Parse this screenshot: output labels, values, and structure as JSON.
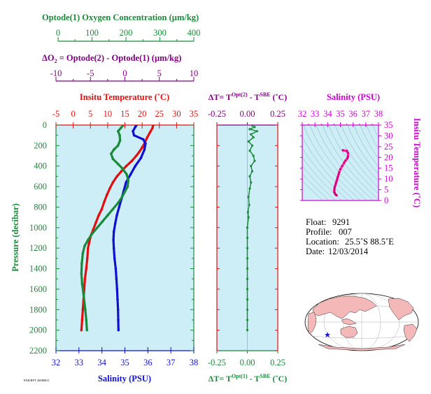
{
  "colors": {
    "green": "#1a8a3a",
    "red": "#e01010",
    "purple": "#800080",
    "magenta": "#d000d0",
    "blue": "#1010d0",
    "panel": "#cdeef7",
    "ts_line": "#ff33aa"
  },
  "headers": {
    "oxygen_title": "Optode(1) Oxygen Concentration (µm/kg)",
    "oxygen_ticks": [
      "0",
      "100",
      "200",
      "300",
      "400"
    ],
    "delta_o2_title_pre": "ΔO",
    "delta_o2_title_sub": "2",
    "delta_o2_title_post": " = Optode(2) - Optode(1)    (µm/kg)",
    "delta_o2_ticks": [
      "-10",
      "-5",
      "0",
      "5",
      "10"
    ],
    "temp_title": "Insitu Temperature (˚C)",
    "temp_ticks": [
      "-5",
      "0",
      "5",
      "10",
      "15",
      "20",
      "25",
      "30",
      "35"
    ],
    "dt_top_title_pre": "ΔT= T",
    "dt_top_sup1": "Opt(2)",
    "dt_top_mid": " - T",
    "dt_top_sup2": "SBE",
    "dt_top_post": " (˚C)",
    "dt_ticks": [
      "-0.25",
      "0.00",
      "0.25"
    ],
    "sal_top_title": "Salinity (PSU)",
    "sal_top_ticks": [
      "32",
      "33",
      "34",
      "35",
      "36",
      "37",
      "38"
    ]
  },
  "main_axes": {
    "ylabel": "Pressure (decibar)",
    "yticks": [
      "0",
      "200",
      "400",
      "600",
      "800",
      "1000",
      "1200",
      "1400",
      "1600",
      "1800",
      "2000",
      "2200"
    ],
    "xlabel": "Salinity (PSU)",
    "xticks": [
      "32",
      "33",
      "34",
      "35",
      "36",
      "37",
      "38"
    ],
    "tiny_label": "PAR/RFT 20080811"
  },
  "dt_bottom": {
    "title_pre": "ΔT= T",
    "sup1": "Opt(1)",
    "mid": " - T",
    "sup2": "SBE",
    "post": " (˚C)",
    "ticks": [
      "-0.25",
      "0.00",
      "0.25"
    ]
  },
  "ts_axes": {
    "right_label": "Insitu Temperature (˚C)",
    "right_ticks": [
      "0",
      "5",
      "10",
      "15",
      "20",
      "25",
      "30",
      "35"
    ]
  },
  "info": {
    "float_label": "Float:",
    "float_value": "9291",
    "profile_label": "Profile:",
    "profile_value": "007",
    "location_label": "Location:",
    "location_value": "25.5˚S  88.5˚E",
    "date_label": "Date:",
    "date_value": "12/03/2014"
  },
  "chart_data": [
    {
      "type": "line",
      "name": "profile-plot",
      "ylim": [
        0,
        2200
      ],
      "y_reversed": true,
      "series": [
        {
          "name": "Insitu Temperature (˚C)",
          "axis": "temperature",
          "xlim": [
            -5,
            35
          ],
          "color": "#e01010",
          "points": [
            [
              23.2,
              2
            ],
            [
              23,
              30
            ],
            [
              22.3,
              70
            ],
            [
              21.5,
              120
            ],
            [
              20.8,
              170
            ],
            [
              20,
              220
            ],
            [
              19.2,
              260
            ],
            [
              18.3,
              300
            ],
            [
              17,
              350
            ],
            [
              15.4,
              400
            ],
            [
              14,
              450
            ],
            [
              12.7,
              500
            ],
            [
              11.5,
              560
            ],
            [
              10.6,
              620
            ],
            [
              9.8,
              680
            ],
            [
              9,
              750
            ],
            [
              8.3,
              820
            ],
            [
              7.4,
              880
            ],
            [
              6.6,
              950
            ],
            [
              5.8,
              1020
            ],
            [
              5.1,
              1080
            ],
            [
              4.6,
              1150
            ],
            [
              4.3,
              1200
            ],
            [
              4.1,
              1300
            ],
            [
              3.8,
              1400
            ],
            [
              3.4,
              1500
            ],
            [
              3.2,
              1600
            ],
            [
              3.0,
              1700
            ],
            [
              2.8,
              1800
            ],
            [
              2.6,
              1900
            ],
            [
              2.4,
              2000
            ]
          ]
        },
        {
          "name": "Salinity (PSU)",
          "axis": "salinity",
          "xlim": [
            32,
            38
          ],
          "color": "#1010d0",
          "points": [
            [
              35.5,
              2
            ],
            [
              35.45,
              20
            ],
            [
              35.35,
              60
            ],
            [
              35.4,
              100
            ],
            [
              35.8,
              140
            ],
            [
              35.9,
              180
            ],
            [
              35.85,
              240
            ],
            [
              35.7,
              320
            ],
            [
              35.45,
              400
            ],
            [
              35.25,
              480
            ],
            [
              35.05,
              560
            ],
            [
              34.95,
              640
            ],
            [
              34.85,
              720
            ],
            [
              34.75,
              800
            ],
            [
              34.65,
              880
            ],
            [
              34.58,
              960
            ],
            [
              34.52,
              1040
            ],
            [
              34.5,
              1120
            ],
            [
              34.52,
              1200
            ],
            [
              34.55,
              1300
            ],
            [
              34.6,
              1400
            ],
            [
              34.63,
              1500
            ],
            [
              34.66,
              1600
            ],
            [
              34.68,
              1700
            ],
            [
              34.7,
              1800
            ],
            [
              34.71,
              1900
            ],
            [
              34.72,
              2000
            ]
          ]
        },
        {
          "name": "Optode(1) Oxygen Concentration (µm/kg)",
          "axis": "oxygen",
          "xlim": [
            0,
            400
          ],
          "color": "#1a8a3a",
          "points": [
            [
              195,
              2
            ],
            [
              188,
              30
            ],
            [
              180,
              60
            ],
            [
              185,
              100
            ],
            [
              186,
              150
            ],
            [
              180,
              200
            ],
            [
              168,
              240
            ],
            [
              160,
              280
            ],
            [
              165,
              330
            ],
            [
              180,
              380
            ],
            [
              192,
              420
            ],
            [
              205,
              480
            ],
            [
              210,
              540
            ],
            [
              208,
              600
            ],
            [
              200,
              650
            ],
            [
              192,
              700
            ],
            [
              180,
              760
            ],
            [
              165,
              820
            ],
            [
              150,
              880
            ],
            [
              135,
              940
            ],
            [
              120,
              1000
            ],
            [
              105,
              1060
            ],
            [
              93,
              1120
            ],
            [
              83,
              1180
            ],
            [
              78,
              1250
            ],
            [
              75,
              1350
            ],
            [
              74,
              1450
            ],
            [
              76,
              1550
            ],
            [
              80,
              1650
            ],
            [
              85,
              1800
            ],
            [
              88,
              1900
            ],
            [
              90,
              2000
            ]
          ]
        }
      ]
    },
    {
      "type": "line",
      "name": "delta-t-plot",
      "xlim": [
        -0.25,
        0.25
      ],
      "ylim": [
        0,
        2200
      ],
      "y_reversed": true,
      "series": [
        {
          "name": "ΔT= T Opt(2) - T SBE",
          "color": "#1a8a3a",
          "points": [
            [
              0.04,
              5
            ],
            [
              0.06,
              20
            ],
            [
              0.02,
              40
            ],
            [
              0.08,
              60
            ],
            [
              0.03,
              90
            ],
            [
              0.05,
              120
            ],
            [
              0.01,
              160
            ],
            [
              0.04,
              200
            ],
            [
              0.02,
              250
            ],
            [
              0.05,
              300
            ],
            [
              0.06,
              350
            ],
            [
              0.03,
              400
            ],
            [
              0.04,
              450
            ],
            [
              0.02,
              500
            ],
            [
              0.03,
              560
            ],
            [
              0.02,
              620
            ],
            [
              0.01,
              700
            ],
            [
              0.015,
              780
            ],
            [
              0.005,
              850
            ],
            [
              0.01,
              900
            ],
            [
              0.0,
              1000
            ],
            [
              0.0,
              1100
            ],
            [
              0.0,
              1200
            ],
            [
              0.0,
              1300
            ],
            [
              0.0,
              1400
            ],
            [
              0.0,
              1500
            ],
            [
              0.0,
              1600
            ],
            [
              0.0,
              1700
            ],
            [
              0.0,
              1800
            ],
            [
              0.0,
              1900
            ],
            [
              0.0,
              2000
            ]
          ]
        }
      ]
    },
    {
      "type": "line",
      "name": "ts-diagram",
      "xlim": [
        32,
        38
      ],
      "ylim": [
        0,
        35
      ],
      "xlabel": "Salinity (PSU)",
      "ylabel": "Insitu Temperature (˚C)",
      "series": [
        {
          "name": "T-S",
          "color": "#ff33aa",
          "points": [
            [
              35.2,
              23.3
            ],
            [
              35.5,
              23.0
            ],
            [
              35.6,
              22.0
            ],
            [
              35.6,
              20.5
            ],
            [
              35.55,
              19.5
            ],
            [
              35.4,
              18.5
            ],
            [
              35.3,
              17.5
            ],
            [
              35.15,
              16.0
            ],
            [
              35.0,
              14.5
            ],
            [
              34.9,
              13.0
            ],
            [
              34.85,
              12.0
            ],
            [
              34.8,
              11.0
            ],
            [
              34.75,
              10.0
            ],
            [
              34.7,
              9.0
            ],
            [
              34.65,
              8.0
            ],
            [
              34.6,
              7.0
            ],
            [
              34.55,
              6.0
            ],
            [
              34.52,
              5.0
            ],
            [
              34.52,
              4.0
            ],
            [
              34.55,
              3.5
            ],
            [
              34.6,
              3.0
            ],
            [
              34.65,
              2.6
            ],
            [
              34.7,
              2.4
            ]
          ]
        }
      ]
    }
  ]
}
